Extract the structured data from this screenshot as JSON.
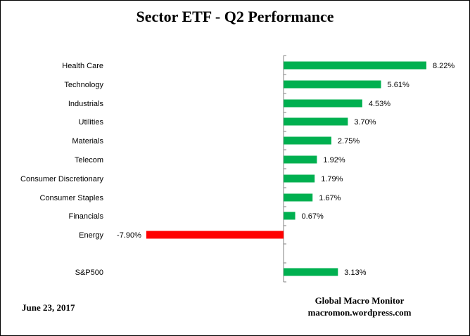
{
  "chart_data": {
    "type": "bar",
    "orientation": "horizontal",
    "title": "Sector ETF - Q2 Performance",
    "xlabel": "",
    "ylabel": "",
    "categories": [
      "Health Care",
      "Technology",
      "Industrials",
      "Utilities",
      "Materials",
      "Telecom",
      "Consumer Discretionary",
      "Consumer Staples",
      "Financials",
      "Energy",
      "S&P500"
    ],
    "values": [
      8.22,
      5.61,
      4.53,
      3.7,
      2.75,
      1.92,
      1.79,
      1.67,
      0.67,
      -7.9,
      3.13
    ],
    "value_labels": [
      "8.22%",
      "5.61%",
      "4.53%",
      "3.70%",
      "2.75%",
      "1.92%",
      "1.79%",
      "1.67%",
      "0.67%",
      "-7.90%",
      "3.13%"
    ],
    "xlim": [
      -7.9,
      8.22
    ],
    "grid": false,
    "legend": "none",
    "colors": {
      "positive": "#00b050",
      "negative": "#ff0000",
      "axis": "#808080"
    }
  },
  "footer": {
    "date": "June 23,  2017",
    "source_name": "Global Macro Monitor",
    "source_url": "macromon.wordpress.com"
  }
}
